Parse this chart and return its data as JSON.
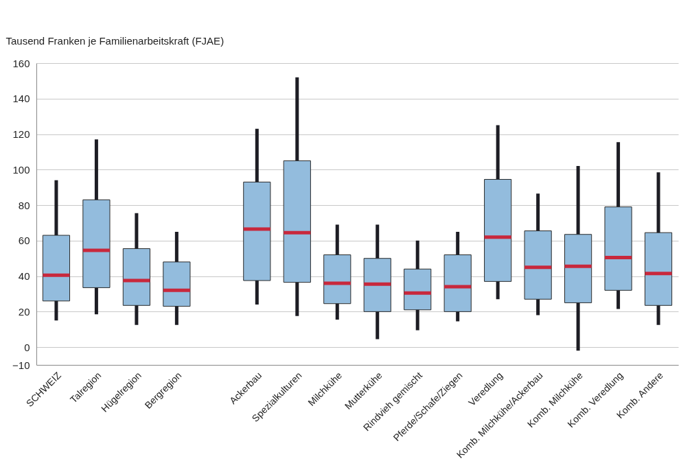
{
  "chart_data": {
    "type": "box",
    "ylabel": "Tausend Franken je Familienarbeitskraft (FJAE)",
    "categories": [
      "SCHWEIZ",
      "Talregion",
      "Hügelregion",
      "Bergregion",
      null,
      "Ackerbau",
      "Spezialkulturen",
      "Milchkühe",
      "Mutterkühe",
      "Rindvieh gemischt",
      "Pferde/Schafe/Ziegen",
      "Veredlung",
      "Komb. Milchkühe/Ackerbau",
      "Komb. Milchkühe",
      "Komb. Veredlung",
      "Komb. Andere"
    ],
    "series": [
      {
        "color": "#93bcdd",
        "boxes": [
          {
            "low": 15,
            "q1": 26,
            "median": 40.5,
            "q3": 63,
            "high": 94
          },
          {
            "low": 18.5,
            "q1": 33.5,
            "median": 54.5,
            "q3": 83,
            "high": 117
          },
          {
            "low": 12.5,
            "q1": 23.5,
            "median": 37.5,
            "q3": 55.5,
            "high": 75.5
          },
          {
            "low": 12.5,
            "q1": 23,
            "median": 32,
            "q3": 48,
            "high": 65
          },
          null,
          {
            "low": 24,
            "q1": 37.5,
            "median": 66.5,
            "q3": 93,
            "high": 123
          },
          {
            "low": 17.5,
            "q1": 36.5,
            "median": 64.5,
            "q3": 105,
            "high": 152
          },
          {
            "low": 15.5,
            "q1": 24.5,
            "median": 36,
            "q3": 52,
            "high": 69
          },
          {
            "low": 4.5,
            "q1": 20,
            "median": 35.5,
            "q3": 50,
            "high": 69
          },
          {
            "low": 9.5,
            "q1": 21,
            "median": 30.5,
            "q3": 44,
            "high": 60
          },
          {
            "low": 14.5,
            "q1": 20,
            "median": 34,
            "q3": 52,
            "high": 65
          },
          {
            "low": 27,
            "q1": 37,
            "median": 62,
            "q3": 94.5,
            "high": 125
          },
          {
            "low": 18,
            "q1": 27,
            "median": 45,
            "q3": 65.5,
            "high": 86.5
          },
          {
            "low": -2,
            "q1": 25,
            "median": 45.5,
            "q3": 63.5,
            "high": 102
          },
          {
            "low": 21.5,
            "q1": 32,
            "median": 50.5,
            "q3": 79,
            "high": 115.5
          },
          {
            "low": 12.5,
            "q1": 23.5,
            "median": 41.5,
            "q3": 64.5,
            "high": 98.5
          }
        ]
      }
    ],
    "ylim": [
      -10,
      160
    ],
    "yticks": [
      -10,
      0,
      20,
      40,
      60,
      80,
      100,
      120,
      140,
      160
    ],
    "grid": "y"
  }
}
